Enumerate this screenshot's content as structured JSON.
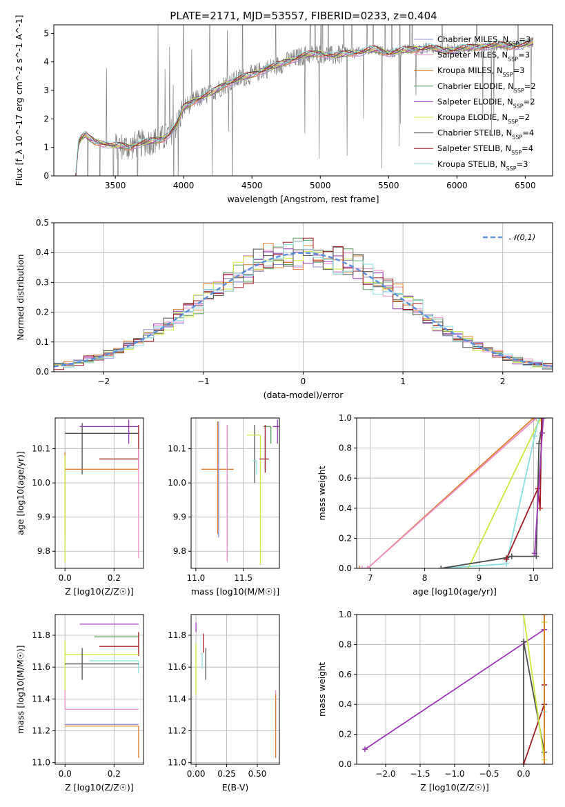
{
  "figure_title": "PLATE=2171, MJD=53557, FIBERID=0233, z=0.404",
  "colors": {
    "chabrier_miles": "#8c8cd6",
    "salpeter_miles": "#f08cc8",
    "kroupa_miles": "#e07a28",
    "chabrier_elodie": "#5a9a5a",
    "salpeter_elodie": "#9b36b8",
    "kroupa_elodie": "#cce83e",
    "chabrier_stelib": "#4d4d4d",
    "salpeter_stelib": "#a11b22",
    "kroupa_stelib": "#8ae0e0",
    "gauss": "#5b8fe0",
    "data": "#808080"
  },
  "chart_data": [
    {
      "type": "line",
      "xlabel": "wavelength [Angstrom, rest frame]",
      "ylabel": "Flux [f_λ 10^-17 erg cm^-2 s^-1 A^-1]",
      "xlim": [
        3050,
        6700
      ],
      "ylim": [
        0,
        5.3
      ],
      "xticks": [
        3500,
        4000,
        4500,
        5000,
        5500,
        6000,
        6500
      ],
      "yticks": [
        0,
        1,
        2,
        3,
        4,
        5
      ],
      "legend_location": "right",
      "series": [
        {
          "name": "Chabrier MILES, N_SSP=3",
          "key": "chabrier_miles"
        },
        {
          "name": "Salpeter MILES, N_SSP=3",
          "key": "salpeter_miles"
        },
        {
          "name": "Kroupa MILES, N_SSP=3",
          "key": "kroupa_miles"
        },
        {
          "name": "Chabrier ELODIE, N_SSP=2",
          "key": "chabrier_elodie"
        },
        {
          "name": "Salpeter ELODIE, N_SSP=2",
          "key": "salpeter_elodie"
        },
        {
          "name": "Kroupa ELODIE, N_SSP=2",
          "key": "kroupa_elodie"
        },
        {
          "name": "Chabrier STELIB, N_SSP=4",
          "key": "chabrier_stelib"
        },
        {
          "name": "Salpeter STELIB, N_SSP=4",
          "key": "salpeter_stelib"
        },
        {
          "name": "Kroupa STELIB, N_SSP=3",
          "key": "kroupa_stelib"
        }
      ],
      "continuum": {
        "x": [
          3210,
          3230,
          3250,
          3280,
          3300,
          3350,
          3400,
          3450,
          3500,
          3550,
          3600,
          3650,
          3700,
          3750,
          3800,
          3850,
          3900,
          3950,
          4000,
          4050,
          4100,
          4200,
          4300,
          4400,
          4500,
          4600,
          4700,
          4800,
          4900,
          5000,
          5100,
          5200,
          5300,
          5400,
          5500,
          5600,
          5700,
          5800,
          5900,
          6000,
          6100,
          6200,
          6300,
          6400,
          6500,
          6560
        ],
        "y": [
          0.0,
          1.15,
          1.3,
          1.45,
          1.35,
          1.2,
          1.15,
          1.1,
          1.05,
          1.05,
          1.0,
          1.1,
          1.15,
          1.2,
          1.25,
          1.3,
          1.5,
          1.8,
          2.4,
          2.55,
          2.7,
          2.9,
          3.2,
          3.4,
          3.55,
          3.75,
          3.9,
          4.1,
          4.25,
          4.3,
          4.2,
          4.3,
          4.35,
          4.45,
          4.3,
          4.4,
          4.45,
          4.5,
          4.4,
          4.45,
          4.5,
          4.55,
          4.6,
          4.55,
          4.6,
          4.7
        ]
      }
    },
    {
      "type": "bar",
      "xlabel": "(data-model)/error",
      "ylabel": "Normed distribution",
      "xlim": [
        -2.5,
        2.5
      ],
      "ylim": [
        0,
        0.5
      ],
      "xticks": [
        -2,
        -1,
        0,
        1,
        2
      ],
      "yticks": [
        0.0,
        0.1,
        0.2,
        0.3,
        0.4,
        0.5
      ],
      "legend_location": "top-right",
      "gauss_label": "𝒩(0,1)",
      "bin_width": 0.1,
      "bin_start": -2.5
    },
    {
      "type": "scatter",
      "xlabel": "Z [log10(Z/Z☉)]",
      "ylabel": "age [log10(age/yr)]",
      "xlim": [
        -0.04,
        0.32
      ],
      "ylim": [
        9.75,
        10.19
      ],
      "xticks": [
        0.0,
        0.2
      ],
      "yticks": [
        9.8,
        9.9,
        10.0,
        10.1
      ],
      "points": [
        {
          "key": "chabrier_stelib",
          "x": 0.07,
          "xerr": [
            0.07,
            0.23
          ],
          "y": 10.145,
          "yerr": [
            0.12,
            0.03
          ]
        },
        {
          "key": "kroupa_miles",
          "x": 0.0,
          "xerr": [
            0.0,
            0.3
          ],
          "y": 10.04,
          "yerr": [
            0.2,
            0.05
          ]
        },
        {
          "key": "salpeter_elodie",
          "x": 0.26,
          "xerr": [
            0.2,
            0.04
          ],
          "y": 10.165,
          "yerr": [
            0.05,
            0.02
          ]
        },
        {
          "key": "salpeter_stelib",
          "x": 0.3,
          "xerr": [
            0.16,
            0.0
          ],
          "y": 10.07,
          "yerr": [
            0.03,
            0.1
          ]
        },
        {
          "key": "kroupa_elodie",
          "x": 0.0,
          "xerr": [
            0.0,
            0.0
          ],
          "y": 9.98,
          "yerr": [
            0.21,
            0.1
          ]
        },
        {
          "key": "salpeter_miles",
          "x": 0.3,
          "xerr": [
            0.0,
            0.0
          ],
          "y": 10.0,
          "yerr": [
            0.22,
            0.1
          ]
        }
      ]
    },
    {
      "type": "scatter",
      "xlabel": "mass [log10(M/M☉)]",
      "ylabel": "",
      "xlim": [
        10.95,
        11.88
      ],
      "ylim": [
        9.75,
        10.19
      ],
      "xticks": [
        11.0,
        11.5
      ],
      "yticks": [
        9.8,
        9.9,
        10.0,
        10.1
      ],
      "points": [
        {
          "key": "kroupa_miles",
          "x": 11.23,
          "xerr": [
            0.17,
            0.17
          ],
          "y": 10.04,
          "yerr": [
            0.19,
            0.14
          ]
        },
        {
          "key": "chabrier_miles",
          "x": 11.24,
          "xerr": [
            0.0,
            0.0
          ],
          "y": 10.04,
          "yerr": [
            0.2,
            0.14
          ]
        },
        {
          "key": "salpeter_miles",
          "x": 11.33,
          "xerr": [
            0.0,
            0.0
          ],
          "y": 10.0,
          "yerr": [
            0.23,
            0.17
          ]
        },
        {
          "key": "chabrier_stelib",
          "x": 11.62,
          "xerr": [
            0.0,
            0.0
          ],
          "y": 10.1,
          "yerr": [
            0.1,
            0.07
          ]
        },
        {
          "key": "kroupa_elodie",
          "x": 11.68,
          "xerr": [
            0.14,
            0.0
          ],
          "y": 10.14,
          "yerr": [
            0.38,
            0.0
          ]
        },
        {
          "key": "chabrier_elodie",
          "x": 11.79,
          "xerr": [
            0.08,
            0.0
          ],
          "y": 10.165,
          "yerr": [
            0.05,
            0.0
          ]
        },
        {
          "key": "salpeter_stelib",
          "x": 11.73,
          "xerr": [
            0.06,
            0.04
          ],
          "y": 10.07,
          "yerr": [
            0.04,
            0.1
          ]
        },
        {
          "key": "salpeter_elodie",
          "x": 11.86,
          "xerr": [
            0.05,
            0.02
          ],
          "y": 10.165,
          "yerr": [
            0.05,
            0.02
          ]
        },
        {
          "key": "kroupa_stelib",
          "x": 11.64,
          "xerr": [
            0.04,
            0.0
          ],
          "y": 10.065,
          "yerr": [
            0.04,
            0.0
          ]
        }
      ]
    },
    {
      "type": "line",
      "xlabel": "age [log10(age/yr)]",
      "ylabel": "mass weight",
      "xlim": [
        6.75,
        10.35
      ],
      "ylim": [
        0,
        1.0
      ],
      "xticks": [
        7,
        8,
        9,
        10
      ],
      "yticks": [
        0.0,
        0.2,
        0.4,
        0.6,
        0.8,
        1.0
      ],
      "series": [
        {
          "key": "kroupa_miles",
          "x": [
            6.8,
            6.95,
            10.0,
            10.1
          ],
          "y": [
            0.0,
            0.0,
            1.0,
            1.0
          ]
        },
        {
          "key": "salpeter_miles",
          "x": [
            6.85,
            6.95,
            10.05
          ],
          "y": [
            0.0,
            0.0,
            1.0
          ]
        },
        {
          "key": "kroupa_elodie",
          "x": [
            8.8,
            10.1,
            10.15
          ],
          "y": [
            0.0,
            0.98,
            1.0
          ]
        },
        {
          "key": "kroupa_stelib",
          "x": [
            8.3,
            9.5,
            10.02,
            10.1
          ],
          "y": [
            0.0,
            0.03,
            0.88,
            1.0
          ]
        },
        {
          "key": "chabrier_stelib",
          "x": [
            8.3,
            9.5,
            9.6,
            10.05,
            10.1,
            10.18
          ],
          "y": [
            0.0,
            0.07,
            0.08,
            0.08,
            0.83,
            1.0
          ]
        },
        {
          "key": "salpeter_stelib",
          "x": [
            9.5,
            10.08,
            10.12,
            10.15
          ],
          "y": [
            0.06,
            0.53,
            0.4,
            1.0
          ]
        },
        {
          "key": "salpeter_elodie",
          "x": [
            10.02,
            10.16,
            10.18
          ],
          "y": [
            0.1,
            0.9,
            1.0
          ]
        }
      ]
    },
    {
      "type": "scatter",
      "xlabel": "Z [log10(Z/Z☉)]",
      "ylabel": "mass [log10(M/M☉)]",
      "xlim": [
        -0.04,
        0.32
      ],
      "ylim": [
        10.99,
        11.93
      ],
      "xticks": [
        0.0,
        0.2
      ],
      "yticks": [
        11.0,
        11.2,
        11.4,
        11.6,
        11.8
      ],
      "points": [
        {
          "key": "salpeter_elodie",
          "x": 0.26,
          "xerr": [
            0.2,
            0.04
          ],
          "y": 11.87,
          "yerr": [
            0.0,
            0.0
          ]
        },
        {
          "key": "chabrier_elodie",
          "x": 0.3,
          "xerr": [
            0.18,
            0.0
          ],
          "y": 11.79,
          "yerr": [
            0.0,
            0.0
          ]
        },
        {
          "key": "salpeter_stelib",
          "x": 0.3,
          "xerr": [
            0.16,
            0.0
          ],
          "y": 11.73,
          "yerr": [
            0.06,
            0.09
          ]
        },
        {
          "key": "kroupa_elodie",
          "x": 0.0,
          "xerr": [
            0.0,
            0.3
          ],
          "y": 11.68,
          "yerr": [
            0.27,
            0.08
          ]
        },
        {
          "key": "kroupa_stelib",
          "x": 0.3,
          "xerr": [
            0.2,
            0.0
          ],
          "y": 11.64,
          "yerr": [
            0.08,
            0.0
          ]
        },
        {
          "key": "chabrier_stelib",
          "x": 0.07,
          "xerr": [
            0.07,
            0.23
          ],
          "y": 11.62,
          "yerr": [
            0.1,
            0.1
          ]
        },
        {
          "key": "salpeter_miles",
          "x": 0.0,
          "xerr": [
            0.0,
            0.3
          ],
          "y": 11.335,
          "yerr": [
            0.0,
            0.12
          ]
        },
        {
          "key": "chabrier_miles",
          "x": 0.0,
          "xerr": [
            0.0,
            0.3
          ],
          "y": 11.24,
          "yerr": [
            0.0,
            0.0
          ]
        },
        {
          "key": "kroupa_miles",
          "x": 0.3,
          "xerr": [
            0.3,
            0.0
          ],
          "y": 11.23,
          "yerr": [
            0.2,
            0.0
          ]
        }
      ]
    },
    {
      "type": "scatter",
      "xlabel": "E(B-V)",
      "ylabel": "",
      "xlim": [
        -0.04,
        0.68
      ],
      "ylim": [
        10.99,
        11.93
      ],
      "xticks": [
        0.0,
        0.25,
        0.5
      ],
      "xticklabels": [
        "0.00",
        "0.25",
        "0.50"
      ],
      "yticks": [
        11.0,
        11.2,
        11.4,
        11.6,
        11.8
      ],
      "points": [
        {
          "key": "salpeter_elodie",
          "x": 0.0,
          "y": 11.85,
          "yerr": [
            0.03,
            0.03
          ]
        },
        {
          "key": "kroupa_elodie",
          "x": 0.0,
          "y": 11.7,
          "yerr": [
            0.27,
            0.05
          ]
        },
        {
          "key": "salpeter_stelib",
          "x": 0.06,
          "y": 11.75,
          "yerr": [
            0.06,
            0.06
          ]
        },
        {
          "key": "kroupa_stelib",
          "x": 0.05,
          "y": 11.64,
          "yerr": [
            0.05,
            0.05
          ]
        },
        {
          "key": "chabrier_stelib",
          "x": 0.08,
          "y": 11.62,
          "yerr": [
            0.1,
            0.1
          ]
        },
        {
          "key": "salpeter_miles",
          "x": 0.65,
          "y": 11.335,
          "yerr": [
            0.12,
            0.12
          ]
        },
        {
          "key": "kroupa_miles",
          "x": 0.65,
          "y": 11.23,
          "yerr": [
            0.2,
            0.2
          ]
        }
      ],
      "xticklabels_full": [
        "0.00",
        "0.25",
        "0.50"
      ]
    },
    {
      "type": "line",
      "xlabel": "Z [log10(Z/Z☉)]",
      "ylabel": "mass weight",
      "xlim": [
        -2.42,
        0.42
      ],
      "ylim": [
        0,
        1.0
      ],
      "xticks": [
        -2.0,
        -1.5,
        -1.0,
        -0.5,
        0.0
      ],
      "yticks": [
        0.0,
        0.2,
        0.4,
        0.6,
        0.8,
        1.0
      ],
      "series": [
        {
          "key": "salpeter_elodie",
          "x": [
            -2.3,
            0.3,
            0.3
          ],
          "y": [
            0.1,
            0.9,
            1.0
          ]
        },
        {
          "key": "chabrier_stelib",
          "x": [
            0.0,
            0.0,
            0.3,
            0.3
          ],
          "y": [
            0.0,
            0.82,
            0.08,
            1.0
          ]
        },
        {
          "key": "salpeter_stelib",
          "x": [
            0.0,
            0.3,
            0.3,
            0.3
          ],
          "y": [
            0.0,
            0.4,
            0.53,
            1.0
          ]
        },
        {
          "key": "kroupa_stelib",
          "x": [
            0.3,
            0.3,
            0.3
          ],
          "y": [
            0.0,
            0.35,
            1.0
          ]
        },
        {
          "key": "kroupa_elodie",
          "x": [
            0.0,
            0.3,
            0.3
          ],
          "y": [
            1.0,
            0.03,
            0.95
          ]
        },
        {
          "key": "kroupa_miles",
          "x": [
            0.3,
            0.3
          ],
          "y": [
            0.0,
            1.0
          ]
        }
      ]
    }
  ]
}
